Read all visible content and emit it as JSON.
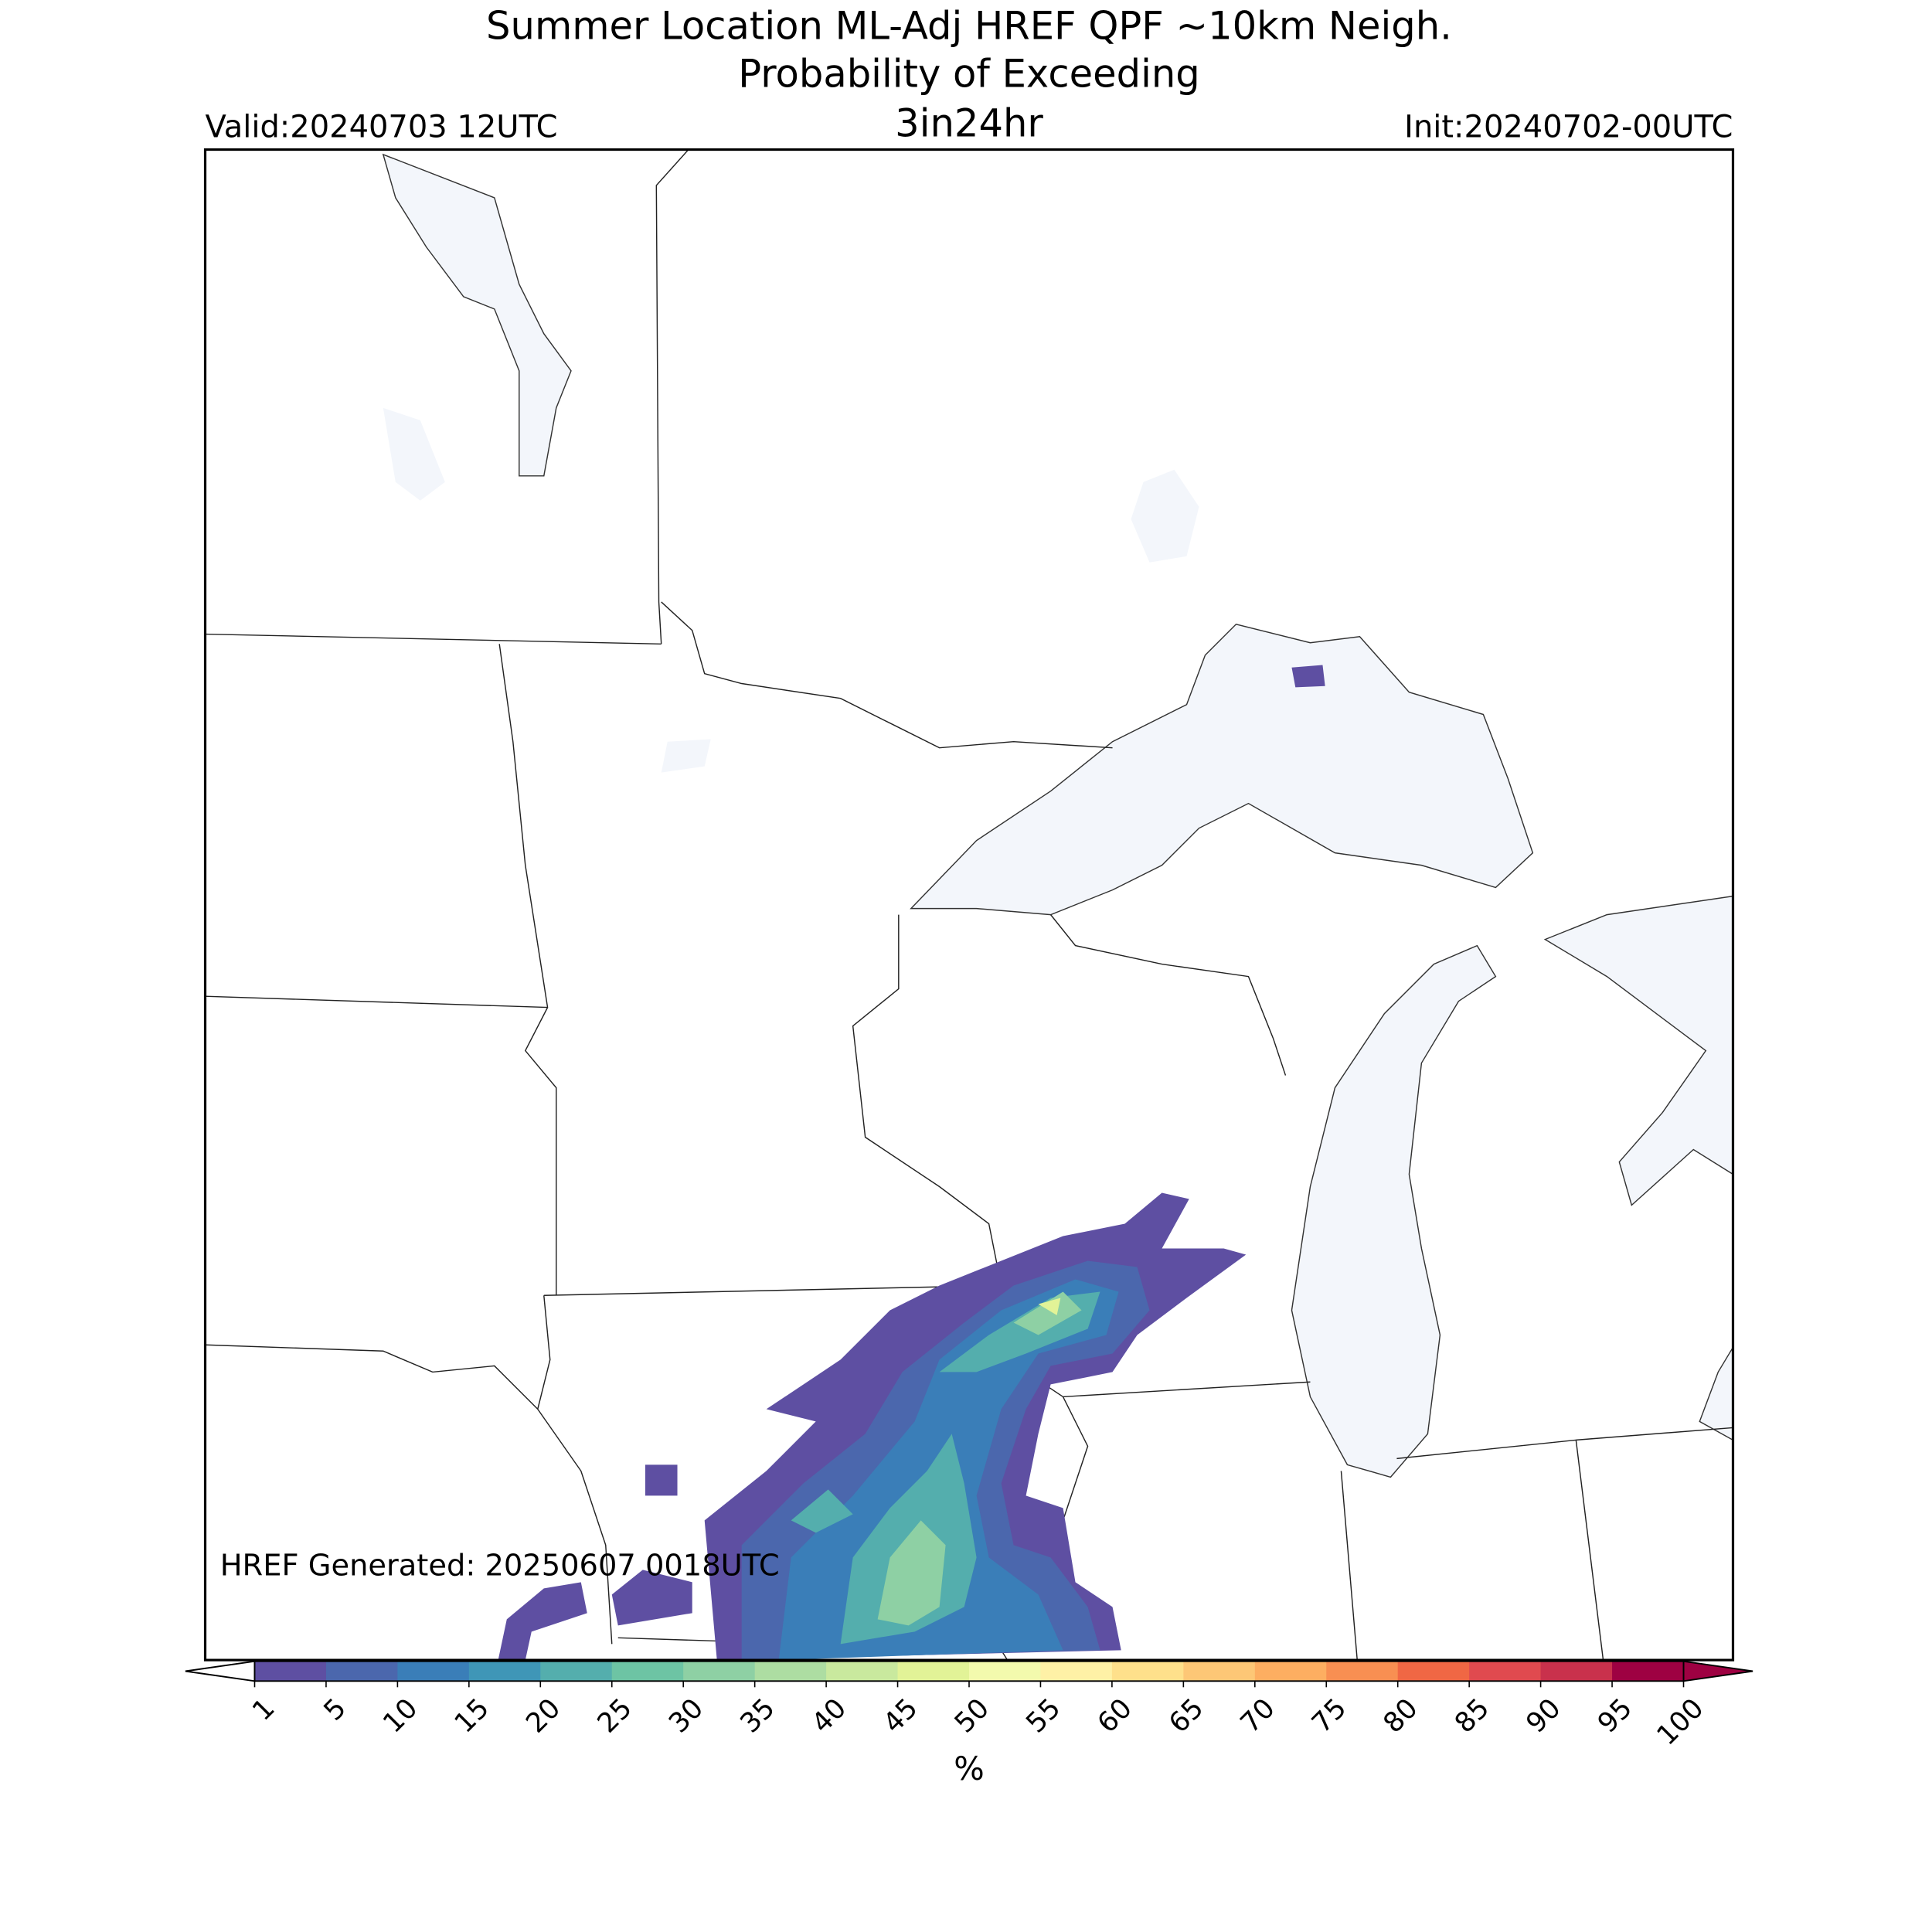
{
  "title": [
    "Summer Location ML-Adj HREF QPF ~10km Neigh.",
    "Probability of Exceeding"
  ],
  "threshold": "3in24hr",
  "valid": "Valid:20240703 12UTC",
  "init": "Init:20240702-00UTC",
  "footnote": "HREF Generated: 20250607 0018UTC",
  "colorbar": {
    "label": "%",
    "ticks": [
      1,
      5,
      10,
      15,
      20,
      25,
      30,
      35,
      40,
      45,
      50,
      55,
      60,
      65,
      70,
      75,
      80,
      85,
      90,
      95,
      100
    ],
    "colors": [
      "#5e4fa2",
      "#4b67ad",
      "#3a7eb8",
      "#3f96b7",
      "#54aead",
      "#6dc4a4",
      "#8ed0a4",
      "#addda2",
      "#c9e99e",
      "#e2f397",
      "#f3faad",
      "#fef1a6",
      "#fee08b",
      "#fdc776",
      "#fdae61",
      "#f88f52",
      "#f06744",
      "#e04a4f",
      "#c9314c",
      "#9e0142"
    ]
  }
}
